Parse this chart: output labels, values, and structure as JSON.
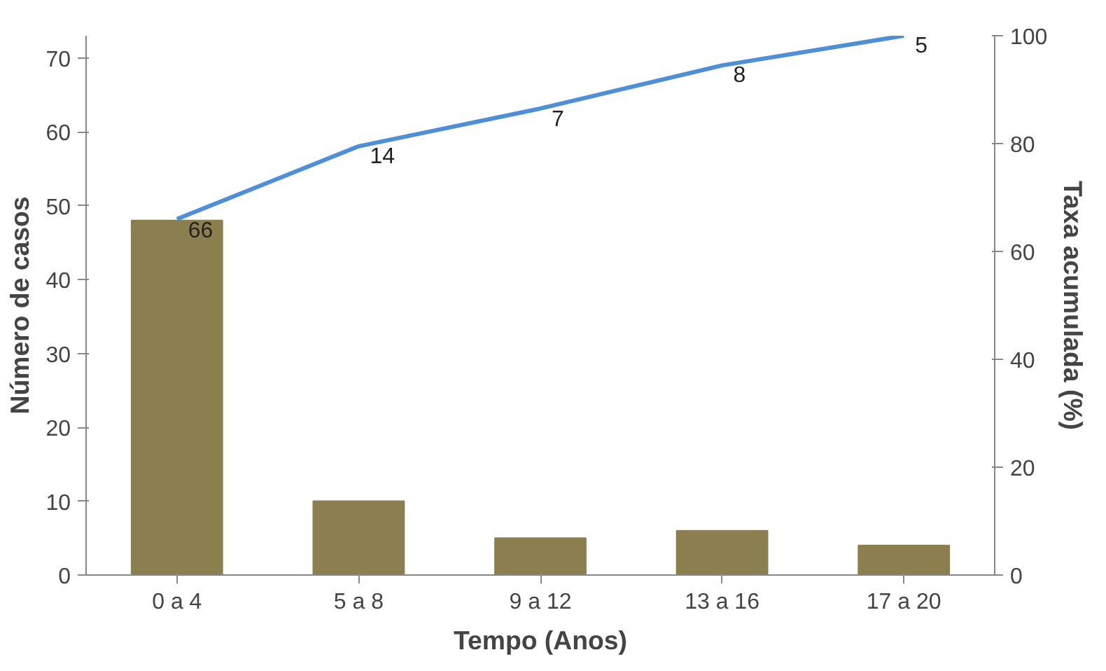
{
  "chart_data": {
    "type": "bar",
    "xlabel": "Tempo (Anos)",
    "ylabel": "Número de casos",
    "y2label": "Taxa acumulada (%)",
    "categories": [
      "0 a 4",
      "5 a 8",
      "9 a 12",
      "13 a 16",
      "17 a 20"
    ],
    "series": [
      {
        "color": "#8c7f4f",
        "values": [
          48,
          10,
          5,
          6,
          4
        ]
      },
      {
        "type": "line",
        "axis": "y2",
        "color": "#4f8fd6",
        "values": [
          66,
          79.5,
          86.5,
          94.5,
          100
        ]
      }
    ],
    "annotations": [
      {
        "text": "66",
        "x": "0 a 4",
        "y": 48
      },
      {
        "text": "14",
        "x": "5 a 8",
        "y": 58
      },
      {
        "text": "7",
        "x": "9 a 12",
        "y": 63
      },
      {
        "text": "8",
        "x": "13 a 16",
        "y": 69
      },
      {
        "text": "5",
        "x": "17 a 20",
        "y": 73
      }
    ],
    "ylim": [
      0,
      73
    ],
    "yticks": [
      0,
      10,
      20,
      30,
      40,
      50,
      60,
      70
    ],
    "y2lim": [
      0,
      100
    ],
    "y2ticks": [
      0,
      20,
      40,
      60,
      80,
      100
    ],
    "marker": "none",
    "line_style": "solid"
  }
}
